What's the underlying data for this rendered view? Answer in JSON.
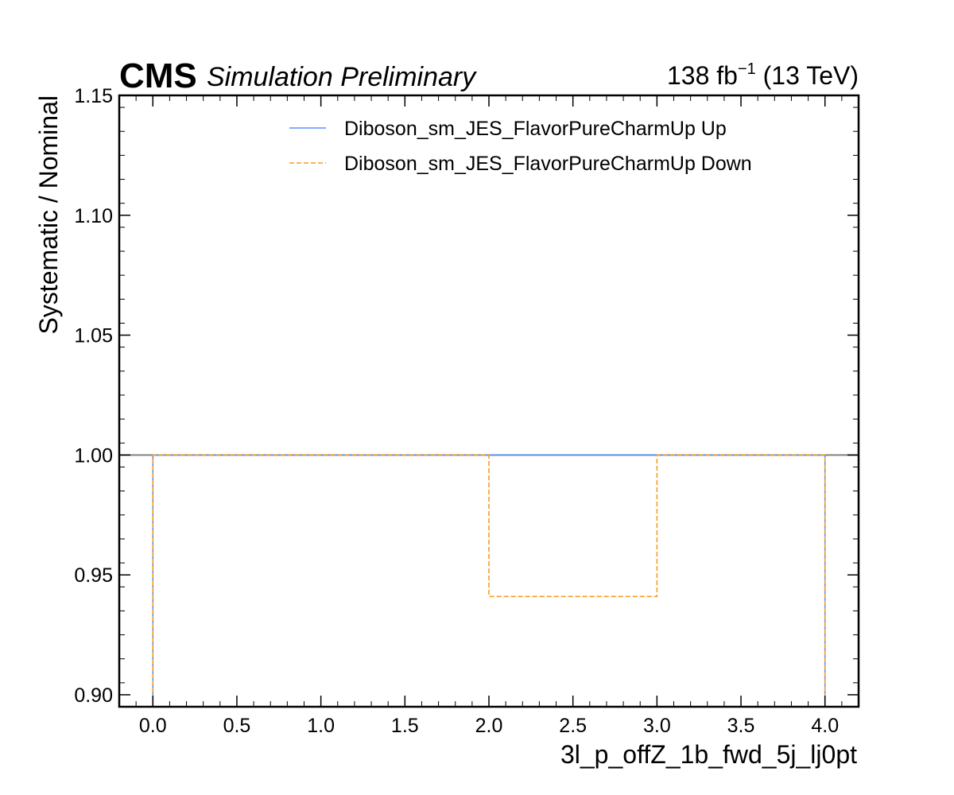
{
  "header": {
    "experiment": "CMS",
    "status": "Simulation Preliminary",
    "lumi_value": "138 fb",
    "lumi_exponent": "−1",
    "energy": " (13 TeV)"
  },
  "chart_data": {
    "type": "line",
    "title": "",
    "xlabel": "3l_p_offZ_1b_fwd_5j_lj0pt",
    "ylabel": "Systematic / Nominal",
    "xlim": [
      -0.2,
      4.2
    ],
    "ylim": [
      0.895,
      1.15
    ],
    "xticks": [
      0.0,
      0.5,
      1.0,
      1.5,
      2.0,
      2.5,
      3.0,
      3.5,
      4.0
    ],
    "xtick_labels": [
      "0.0",
      "0.5",
      "1.0",
      "1.5",
      "2.0",
      "2.5",
      "3.0",
      "3.5",
      "4.0"
    ],
    "yticks": [
      0.9,
      0.95,
      1.0,
      1.05,
      1.1,
      1.15
    ],
    "ytick_labels": [
      "0.90",
      "0.95",
      "1.00",
      "1.05",
      "1.10",
      "1.15"
    ],
    "reference_line": 1.0,
    "bin_edges": [
      0,
      1,
      2,
      3,
      4
    ],
    "legend_position": "top-right",
    "series": [
      {
        "name": "Diboson_sm_JES_FlavorPureCharmUp Up",
        "color": "#5790fc",
        "style": "solid",
        "values": [
          1.0,
          1.0,
          1.0,
          1.0
        ]
      },
      {
        "name": "Diboson_sm_JES_FlavorPureCharmUp Down",
        "color": "#f89c20",
        "style": "dashed",
        "values": [
          1.0,
          1.0,
          0.941,
          1.0
        ]
      }
    ],
    "reference_color": "#808080",
    "grid": false
  }
}
